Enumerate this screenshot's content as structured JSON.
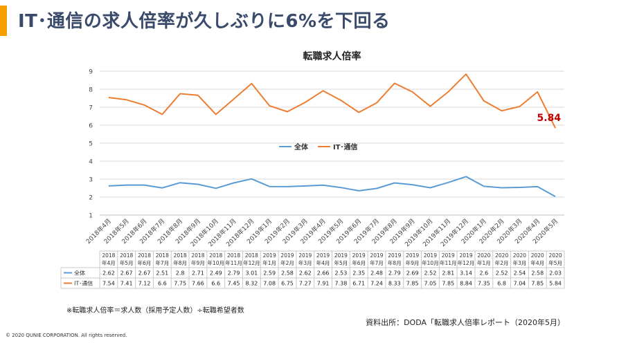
{
  "page": {
    "title": "IT･通信の求人倍率が久しぶりに6%を下回る",
    "footnote": "※転職求人倍率＝求人数（採用予定人数）÷転職希望者数",
    "source": "資料出所：DODA「転職求人倍率レポート（2020年5月）",
    "copyright": "© 2020  QUNIE CORPORATION. All rights reserved."
  },
  "chart_data": {
    "type": "line",
    "title": "転職求人倍率",
    "ylim": [
      1,
      9
    ],
    "yticks": [
      1,
      2,
      3,
      4,
      5,
      6,
      7,
      8,
      9
    ],
    "grid": true,
    "legend": "center",
    "categories": [
      "2018年4月",
      "2018年5月",
      "2018年6月",
      "2018年7月",
      "2018年8月",
      "2018年9月",
      "2018年10月",
      "2018年11月",
      "2018年12月",
      "2019年1月",
      "2019年2月",
      "2019年3月",
      "2019年4月",
      "2019年5月",
      "2019年6月",
      "2019年7月",
      "2019年8月",
      "2019年9月",
      "2019年10月",
      "2019年11月",
      "2019年12月",
      "2020年1月",
      "2020年2月",
      "2020年3月",
      "2020年4月",
      "2020年5月"
    ],
    "table_years": [
      "2018",
      "2018",
      "2018",
      "2018",
      "2018",
      "2018",
      "2018",
      "2018",
      "2018",
      "2019",
      "2019",
      "2019",
      "2019",
      "2019",
      "2019",
      "2019",
      "2019",
      "2019",
      "2019",
      "2019",
      "2019",
      "2020",
      "2020",
      "2020",
      "2020",
      "2020"
    ],
    "table_months": [
      "年4月",
      "年5月",
      "年6月",
      "年7月",
      "年8月",
      "年9月",
      "年10月",
      "年11月",
      "年12月",
      "年1月",
      "年2月",
      "年3月",
      "年4月",
      "年5月",
      "年6月",
      "年7月",
      "年8月",
      "年9月",
      "年10月",
      "年11月",
      "年12月",
      "年1月",
      "年2月",
      "年3月",
      "年4月",
      "年5月"
    ],
    "series": [
      {
        "name": "全体",
        "color": "#5b9bd5",
        "values": [
          2.62,
          2.67,
          2.67,
          2.51,
          2.8,
          2.71,
          2.49,
          2.79,
          3.01,
          2.59,
          2.58,
          2.62,
          2.66,
          2.53,
          2.35,
          2.48,
          2.79,
          2.69,
          2.52,
          2.81,
          3.14,
          2.6,
          2.52,
          2.54,
          2.58,
          2.03
        ]
      },
      {
        "name": "IT･通信",
        "color": "#ed7d31",
        "values": [
          7.54,
          7.41,
          7.12,
          6.6,
          7.75,
          7.66,
          6.6,
          7.45,
          8.32,
          7.08,
          6.75,
          7.27,
          7.91,
          7.38,
          6.71,
          7.24,
          8.33,
          7.85,
          7.05,
          7.85,
          8.84,
          7.35,
          6.8,
          7.04,
          7.85,
          5.84
        ]
      }
    ],
    "annotation": {
      "text": "5.84",
      "color": "#c00000"
    }
  }
}
